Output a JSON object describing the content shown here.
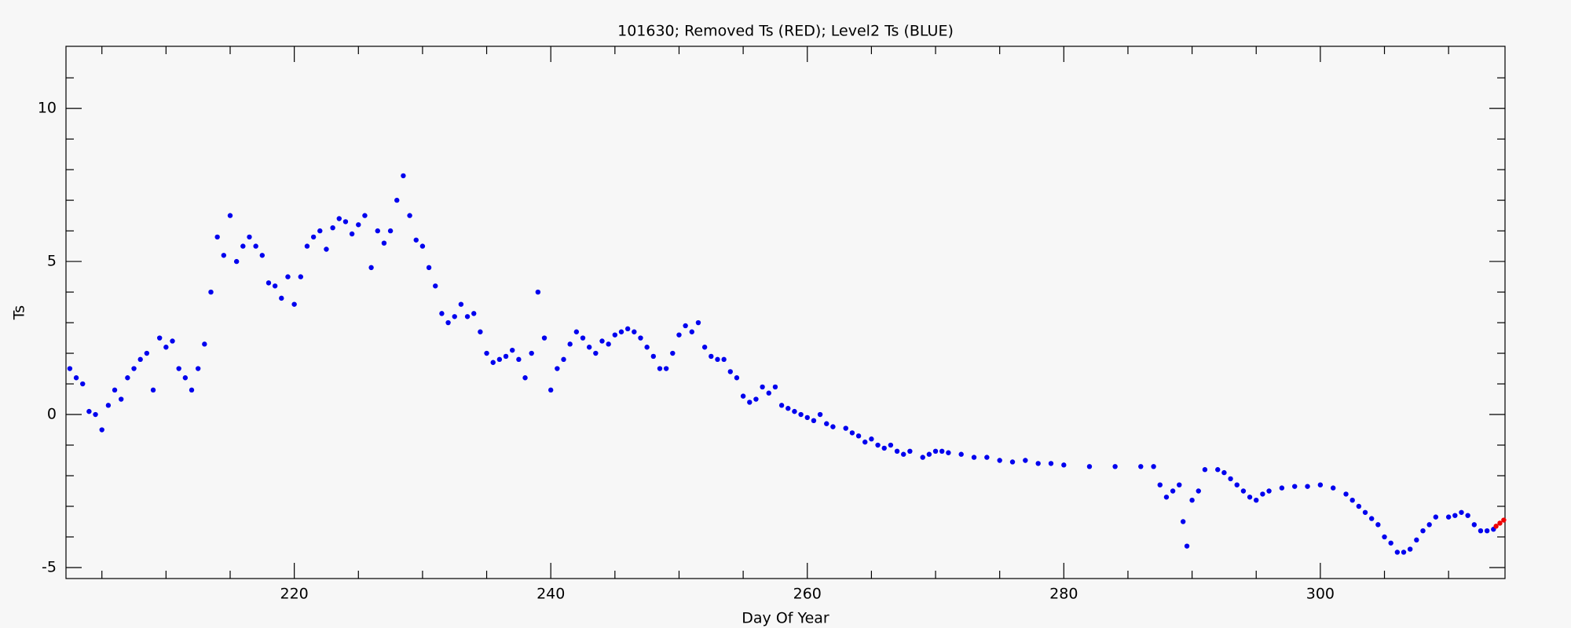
{
  "chart_data": {
    "type": "scatter",
    "title": "101630; Removed Ts (RED); Level2 Ts (BLUE)",
    "x_label": "Day Of Year",
    "y_label": "Ts",
    "xlim": [
      202.2,
      314.4
    ],
    "ylim": [
      -5.36,
      12.03
    ],
    "xticks": [
      220,
      240,
      260,
      280,
      300
    ],
    "yticks": [
      -5,
      0,
      5,
      10
    ],
    "xminorticks": [
      205,
      210,
      215,
      225,
      230,
      235,
      245,
      250,
      255,
      265,
      270,
      275,
      285,
      290,
      295,
      305,
      310
    ],
    "yminorticks": [
      -4,
      -3,
      -2,
      -1,
      1,
      2,
      3,
      4,
      6,
      7,
      8,
      9,
      11
    ],
    "series": [
      {
        "name": "Level2 Ts",
        "color": "#0000ee",
        "x": [
          202.5,
          203,
          203.5,
          204,
          204.5,
          205,
          205.5,
          206,
          206.5,
          207,
          207.5,
          208,
          208.5,
          209,
          209.5,
          210,
          210.5,
          211,
          211.5,
          212,
          212.5,
          213,
          213.5,
          214,
          214.5,
          215,
          215.5,
          216,
          216.5,
          217,
          217.5,
          218,
          218.5,
          219,
          219.5,
          220,
          220.5,
          221,
          221.5,
          222,
          222.5,
          223,
          223.5,
          224,
          224.5,
          225,
          225.5,
          226,
          226.5,
          227,
          227.5,
          228,
          228.5,
          229,
          229.5,
          230,
          230.5,
          231,
          231.5,
          232,
          232.5,
          233,
          233.5,
          234,
          234.5,
          235,
          235.5,
          236,
          236.5,
          237,
          237.5,
          238,
          238.5,
          239,
          239.5,
          240,
          240.5,
          241,
          241.5,
          242,
          242.5,
          243,
          243.5,
          244,
          244.5,
          245,
          245.5,
          246,
          246.5,
          247,
          247.5,
          248,
          248.5,
          249,
          249.5,
          250,
          250.5,
          251,
          251.5,
          252,
          252.5,
          253,
          253.5,
          254,
          254.5,
          255,
          255.5,
          256,
          256.5,
          257,
          257.5,
          258,
          258.5,
          259,
          259.5,
          260,
          260.5,
          261,
          261.5,
          262,
          263,
          263.5,
          264,
          264.5,
          265,
          265.5,
          266,
          266.5,
          267,
          267.5,
          268,
          269,
          269.5,
          270,
          270.5,
          271,
          272,
          273,
          274,
          275,
          276,
          277,
          278,
          279,
          280,
          282,
          284,
          286,
          287,
          287.5,
          288,
          288.5,
          289,
          289.3,
          289.6,
          290,
          290.5,
          291,
          292,
          292.5,
          293,
          293.5,
          294,
          294.5,
          295,
          295.5,
          296,
          297,
          298,
          299,
          300,
          301,
          302,
          302.5,
          303,
          303.5,
          304,
          304.5,
          305,
          305.5,
          306,
          306.5,
          307,
          307.5,
          308,
          308.5,
          309,
          310,
          310.5,
          311,
          311.5,
          312,
          312.5,
          313,
          313.5
        ],
        "values": [
          1.5,
          1.2,
          1.0,
          0.1,
          0.0,
          -0.5,
          0.3,
          0.8,
          0.5,
          1.2,
          1.5,
          1.8,
          2.0,
          0.8,
          2.5,
          2.2,
          2.4,
          1.5,
          1.2,
          0.8,
          1.5,
          2.3,
          4.0,
          5.8,
          5.2,
          6.5,
          5.0,
          5.5,
          5.8,
          5.5,
          5.2,
          4.3,
          4.2,
          3.8,
          4.5,
          3.6,
          4.5,
          5.5,
          5.8,
          6.0,
          5.4,
          6.1,
          6.4,
          6.3,
          5.9,
          6.2,
          6.5,
          4.8,
          6.0,
          5.6,
          6.0,
          7.0,
          7.8,
          6.5,
          5.7,
          5.5,
          4.8,
          4.2,
          3.3,
          3.0,
          3.2,
          3.6,
          3.2,
          3.3,
          2.7,
          2.0,
          1.7,
          1.8,
          1.9,
          2.1,
          1.8,
          1.2,
          2.0,
          4.0,
          2.5,
          0.8,
          1.5,
          1.8,
          2.3,
          2.7,
          2.5,
          2.2,
          2.0,
          2.4,
          2.3,
          2.6,
          2.7,
          2.8,
          2.7,
          2.5,
          2.2,
          1.9,
          1.5,
          1.5,
          2.0,
          2.6,
          2.9,
          2.7,
          3.0,
          2.2,
          1.9,
          1.8,
          1.8,
          1.4,
          1.2,
          0.6,
          0.4,
          0.5,
          0.9,
          0.7,
          0.9,
          0.3,
          0.2,
          0.1,
          0.0,
          -0.1,
          -0.2,
          0.0,
          -0.3,
          -0.4,
          -0.45,
          -0.6,
          -0.7,
          -0.9,
          -0.8,
          -1.0,
          -1.1,
          -1.0,
          -1.2,
          -1.3,
          -1.2,
          -1.4,
          -1.3,
          -1.2,
          -1.2,
          -1.25,
          -1.3,
          -1.4,
          -1.4,
          -1.5,
          -1.55,
          -1.5,
          -1.6,
          -1.6,
          -1.65,
          -1.7,
          -1.7,
          -1.7,
          -1.7,
          -2.3,
          -2.7,
          -2.5,
          -2.3,
          -3.5,
          -4.3,
          -2.8,
          -2.5,
          -1.8,
          -1.8,
          -1.9,
          -2.1,
          -2.3,
          -2.5,
          -2.7,
          -2.8,
          -2.6,
          -2.5,
          -2.4,
          -2.35,
          -2.35,
          -2.3,
          -2.4,
          -2.6,
          -2.8,
          -3.0,
          -3.2,
          -3.4,
          -3.6,
          -4.0,
          -4.2,
          -4.5,
          -4.5,
          -4.4,
          -4.1,
          -3.8,
          -3.6,
          -3.35,
          -3.35,
          -3.3,
          -3.2,
          -3.3,
          -3.6,
          -3.8,
          -3.8,
          -3.75
        ]
      },
      {
        "name": "Removed Ts",
        "color": "#ee0000",
        "x": [
          313.7,
          314,
          314.3
        ],
        "values": [
          -3.65,
          -3.55,
          -3.45
        ]
      }
    ]
  }
}
